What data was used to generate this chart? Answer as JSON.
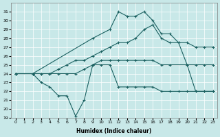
{
  "xlabel": "Humidex (Indice chaleur)",
  "bg_color": "#c8e8e8",
  "line_color": "#1a6060",
  "xlim": [
    -0.5,
    23.5
  ],
  "ylim": [
    19,
    32
  ],
  "yticks": [
    19,
    20,
    21,
    22,
    23,
    24,
    25,
    26,
    27,
    28,
    29,
    30,
    31
  ],
  "xticks": [
    0,
    1,
    2,
    3,
    4,
    5,
    6,
    7,
    8,
    9,
    10,
    11,
    12,
    13,
    14,
    15,
    16,
    17,
    18,
    19,
    20,
    21,
    22,
    23
  ],
  "line1_x": [
    0,
    2,
    3,
    4,
    5,
    6,
    7,
    8,
    9,
    10,
    11,
    12,
    13,
    14,
    15,
    16,
    17,
    18,
    19,
    20,
    21,
    22,
    23
  ],
  "line1_y": [
    24,
    24,
    23,
    22.5,
    21.5,
    21.5,
    19.2,
    21,
    25,
    25,
    25,
    22.5,
    22.5,
    22.5,
    22.5,
    22.5,
    22,
    22,
    22,
    22,
    22,
    22,
    22
  ],
  "line2_x": [
    0,
    2,
    3,
    4,
    5,
    6,
    7,
    8,
    9,
    10,
    11,
    12,
    13,
    14,
    15,
    16,
    17,
    18,
    20,
    21,
    22,
    23
  ],
  "line2_y": [
    24,
    24,
    24,
    24,
    24,
    24,
    24,
    24.5,
    25,
    25.5,
    25.5,
    25.5,
    25.5,
    25.5,
    25.5,
    25.5,
    25,
    25,
    25,
    25,
    25,
    25
  ],
  "line3_x": [
    0,
    2,
    9,
    11,
    12,
    13,
    14,
    15,
    16,
    17,
    18,
    19,
    20,
    21,
    22,
    23
  ],
  "line3_y": [
    24,
    24,
    28,
    29,
    31,
    30.5,
    30.5,
    31,
    30,
    28.5,
    28.5,
    27.5,
    25,
    22,
    22,
    22
  ],
  "line4_x": [
    0,
    2,
    3,
    4,
    5,
    6,
    7,
    8,
    9,
    10,
    11,
    12,
    13,
    14,
    15,
    16,
    17,
    18,
    19,
    20,
    21,
    22,
    23
  ],
  "line4_y": [
    24,
    24,
    24,
    24,
    24.5,
    25,
    25.5,
    25.5,
    26,
    26.5,
    27,
    27.5,
    27.5,
    28,
    29,
    29.5,
    28,
    27.5,
    27.5,
    27.5,
    27,
    27,
    27
  ]
}
